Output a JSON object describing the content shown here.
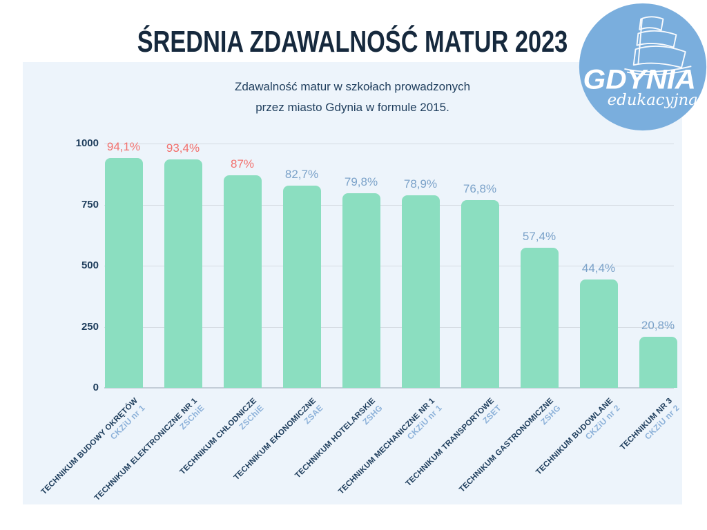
{
  "page": {
    "title": "ŚREDNIA ZDAWALNOŚĆ MATUR 2023",
    "subtitle_line1": "Zdawalność matur w szkołach prowadzonych",
    "subtitle_line2": "przez miasto Gdynia w formule 2015."
  },
  "logo": {
    "wordmark": "GDYNIA",
    "tagline": "edukacyjna"
  },
  "chart_data": {
    "type": "bar",
    "title": "Zdawalność matur w szkołach prowadzonych przez miasto Gdynia w formule 2015.",
    "categories": [
      "TECHNIKUM BUDOWY OKRĘTÓW",
      "TECHNIKUM ELEKTRONICZNE NR 1",
      "TECHNIKUM CHŁODNICZE",
      "TECHNIKUM EKONOMICZNE",
      "TECHNIKUM HOTELARSKIE",
      "TECHNIKUM MECHANICZNE NR 1",
      "TECHNIKUM TRANSPORTOWE",
      "TECHNIKUM GASTRONOMICZNE",
      "TECHNIKUM BUDOWLANE",
      "TECHNIKUM NR 3"
    ],
    "category_units": [
      "CKZiU nr 1",
      "ZSChiE",
      "ZSChiE",
      "ZSAE",
      "ZSHG",
      "CKZiU nr 1",
      "ZSET",
      "ZSHG",
      "CKZiU nr 2",
      "CKZiU nr 2"
    ],
    "values_percent": [
      94.1,
      93.4,
      87,
      82.7,
      79.8,
      78.9,
      76.8,
      57.4,
      44.4,
      20.8
    ],
    "value_labels": [
      "94,1%",
      "93,4%",
      "87%",
      "82,7%",
      "79,8%",
      "78,9%",
      "76,8%",
      "57,4%",
      "44,4%",
      "20,8%"
    ],
    "axis_values": [
      941,
      934,
      870,
      827,
      798,
      789,
      768,
      574,
      444,
      208
    ],
    "highlighted_label_indices": [
      0,
      1,
      2
    ],
    "xlabel": "",
    "ylabel": "",
    "ylim": [
      0,
      1000
    ],
    "yticks": [
      "0",
      "250",
      "500",
      "750",
      "1000"
    ],
    "grid": true,
    "legend": false
  },
  "colors": {
    "bar": "#8BDEC0",
    "value_label_accent": "#F2716E",
    "value_label_normal": "#7BA2C9",
    "axis_text": "#1E3D5C",
    "title_text": "#16293D",
    "grid": "#D5DBE2",
    "panel_bg": "#EDF4FB",
    "category_text": "#1E3D5C",
    "category_unit_text": "#8CB1D9",
    "logo_bg": "#7AAEDD",
    "logo_text": "#FFFFFF"
  }
}
